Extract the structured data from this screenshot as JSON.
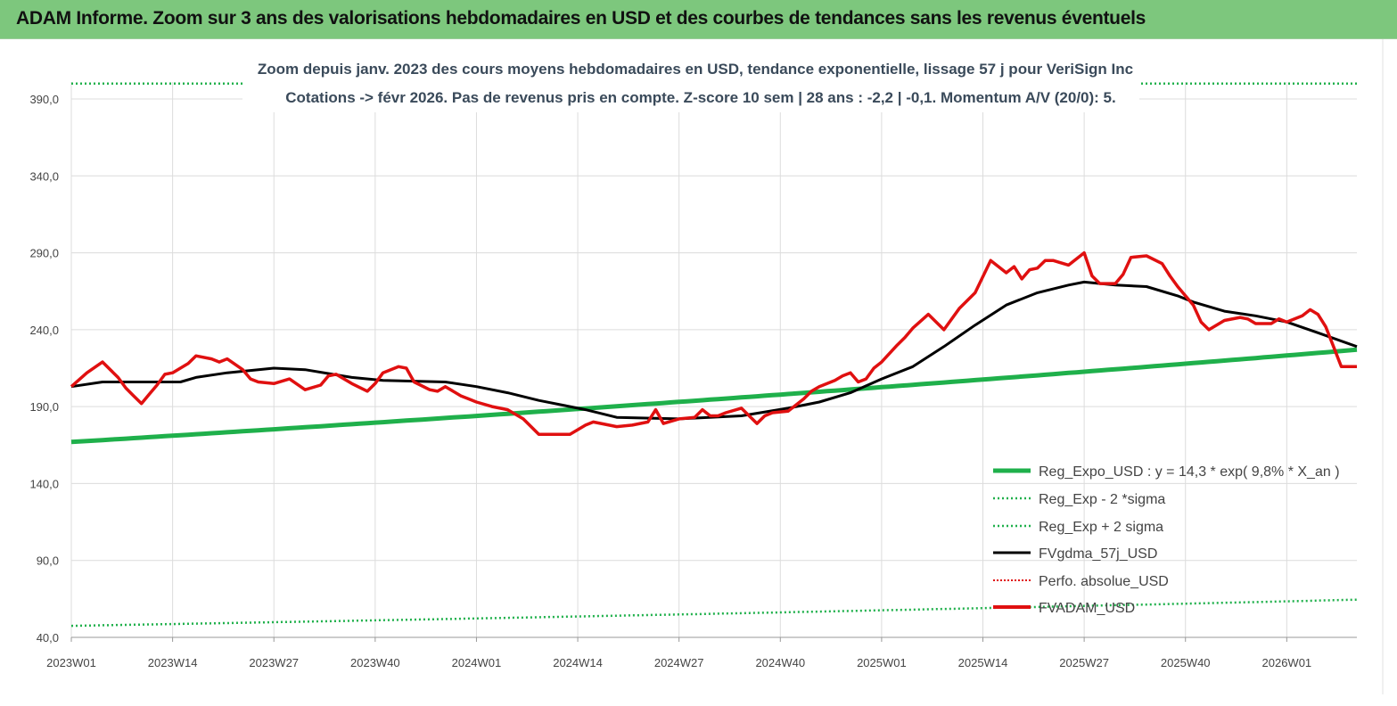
{
  "header": {
    "title": "ADAM Informe. Zoom sur 3 ans des valorisations hebdomadaires en USD et des courbes de tendances sans les revenus éventuels"
  },
  "colors": {
    "header_bg": "#7dc77d",
    "reg_expo": "#1fb04b",
    "fvgdma": "#000000",
    "fvadam": "#e01010",
    "perfo": "#e01010"
  },
  "chart_data": {
    "type": "line",
    "subtitle_line1": "Zoom depuis janv. 2023  des cours moyens hebdomadaires en USD, tendance exponentielle, lissage 57 j pour VeriSign Inc",
    "subtitle_line2": "Cotations -> févr 2026.  Pas de revenus pris en compte. Z-score 10 sem  | 28 ans : -2,2  | -0,1. Momentum A/V (20/0): 5.",
    "y_ticks": [
      "40,0",
      "90,0",
      "140,0",
      "190,0",
      "240,0",
      "290,0",
      "340,0",
      "390,0"
    ],
    "ylim": [
      40,
      390
    ],
    "x_ticks": [
      "2023W01",
      "2023W14",
      "2023W27",
      "2023W40",
      "2024W01",
      "2024W14",
      "2024W27",
      "2024W40",
      "2025W01",
      "2025W14",
      "2025W27",
      "2025W40",
      "2026W01"
    ],
    "x_tick_index": [
      0,
      13,
      26,
      39,
      52,
      65,
      78,
      91,
      104,
      117,
      130,
      143,
      156
    ],
    "n_points": 166,
    "legend": [
      {
        "key": "reg_expo",
        "label": "Reg_Expo_USD : y = 14,3 * exp( 9,8% *  X_an )"
      },
      {
        "key": "reg_minus",
        "label": "Reg_Exp - 2 *sigma"
      },
      {
        "key": "reg_plus",
        "label": "Reg_Exp + 2 sigma"
      },
      {
        "key": "fvgdma",
        "label": "FVgdma_57j_USD"
      },
      {
        "key": "perfo",
        "label": "Perfo. absolue_USD"
      },
      {
        "key": "fvadam",
        "label": "FVADAM_USD"
      }
    ],
    "series": [
      {
        "name": "Reg_Expo_USD",
        "style": "solid-thick",
        "start": 167,
        "end": 227
      },
      {
        "name": "Reg_Exp - 2 *sigma",
        "style": "dotted",
        "start": 47.5,
        "end": 64.5
      },
      {
        "name": "Reg_Exp + 2 sigma",
        "style": "dotted",
        "start": 400,
        "end": 400
      },
      {
        "name": "FVgdma_57j_USD",
        "style": "solid",
        "x": [
          0,
          4,
          8,
          14,
          16,
          20,
          26,
          30,
          36,
          40,
          48,
          52,
          56,
          60,
          64,
          66,
          70,
          78,
          86,
          92,
          96,
          100,
          104,
          108,
          112,
          116,
          120,
          124,
          128,
          130,
          134,
          138,
          142,
          144,
          148,
          152,
          156,
          160,
          165
        ],
        "values": [
          203,
          206,
          206,
          206,
          209,
          212,
          215,
          214,
          209,
          207,
          206,
          203,
          199,
          194,
          190,
          188,
          183,
          182,
          184,
          189,
          193,
          199,
          208,
          216,
          229,
          243,
          256,
          264,
          269,
          271,
          269,
          268,
          262,
          258,
          252,
          249,
          245,
          238,
          229
        ]
      },
      {
        "name": "FVADAM_USD",
        "style": "solid",
        "x": [
          0,
          2,
          4,
          6,
          7,
          8,
          9,
          10,
          11,
          12,
          13,
          15,
          16,
          18,
          19,
          20,
          22,
          23,
          24,
          26,
          28,
          30,
          32,
          33,
          34,
          36,
          38,
          39,
          40,
          42,
          43,
          44,
          46,
          47,
          48,
          50,
          51,
          52,
          54,
          55,
          56,
          58,
          60,
          64,
          66,
          67,
          68,
          70,
          72,
          74,
          75,
          76,
          78,
          80,
          81,
          82,
          83,
          84,
          86,
          88,
          89,
          90,
          92,
          94,
          95,
          96,
          98,
          99,
          100,
          101,
          102,
          103,
          104,
          106,
          107,
          108,
          110,
          112,
          114,
          116,
          118,
          119,
          120,
          121,
          122,
          123,
          124,
          125,
          126,
          128,
          130,
          131,
          132,
          134,
          135,
          136,
          138,
          140,
          141,
          142,
          144,
          145,
          146,
          148,
          150,
          151,
          152,
          154,
          155,
          156,
          158,
          159,
          160,
          161,
          162,
          163,
          165
        ],
        "values": [
          203,
          212,
          219,
          209,
          202,
          197,
          192,
          198,
          204,
          211,
          212,
          218,
          223,
          221,
          219,
          221,
          214,
          208,
          206,
          205,
          208,
          201,
          204,
          210,
          211,
          205,
          200,
          205,
          212,
          216,
          215,
          206,
          201,
          200,
          203,
          197,
          195,
          193,
          190,
          189,
          188,
          182,
          172,
          172,
          178,
          180,
          179,
          177,
          178,
          180,
          188,
          179,
          182,
          183,
          188,
          184,
          184,
          186,
          189,
          179,
          184,
          186,
          187,
          195,
          200,
          203,
          207,
          210,
          212,
          206,
          208,
          215,
          219,
          230,
          235,
          241,
          250,
          240,
          254,
          264,
          285,
          281,
          277,
          281,
          273,
          279,
          280,
          285,
          285,
          282,
          290,
          275,
          270,
          270,
          276,
          287,
          288,
          283,
          275,
          268,
          256,
          245,
          240,
          246,
          248,
          247,
          244,
          244,
          247,
          245,
          249,
          253,
          250,
          242,
          229,
          216,
          216
        ]
      }
    ]
  }
}
